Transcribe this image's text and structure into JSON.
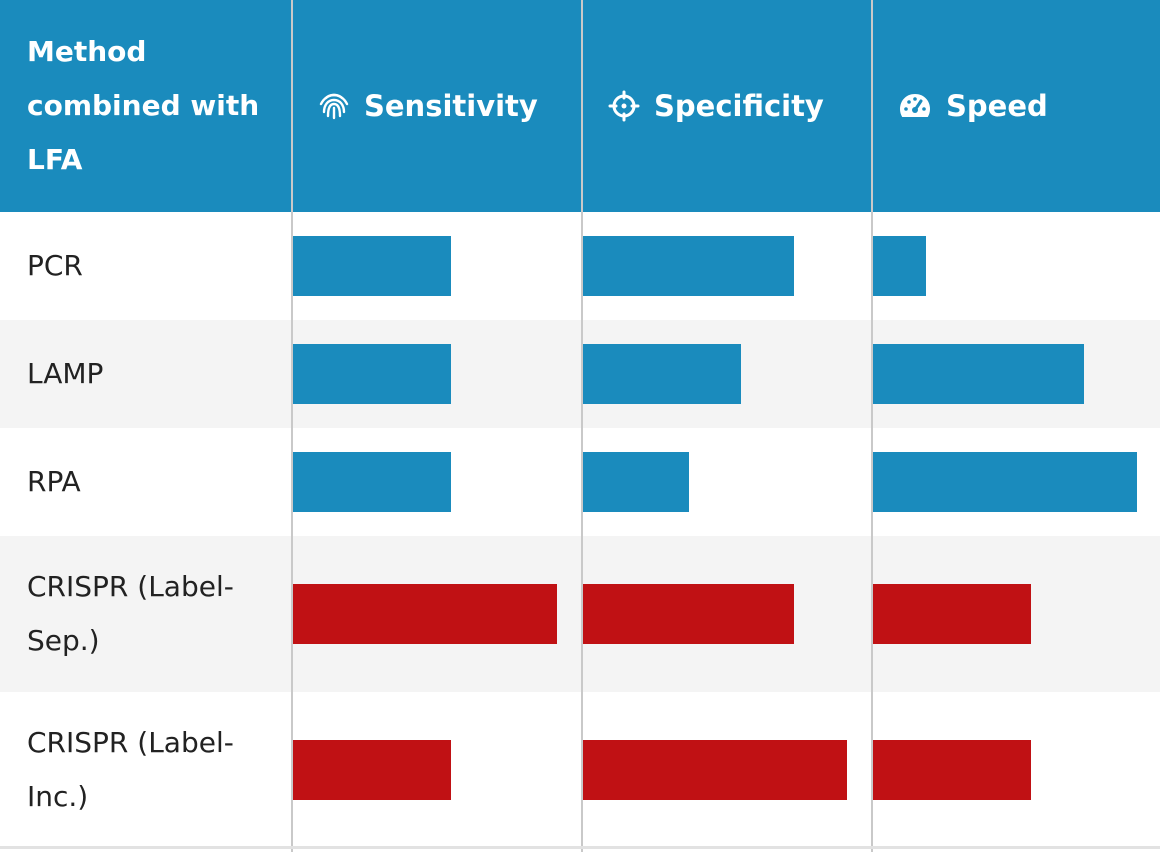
{
  "header": {
    "method_title": [
      "Method",
      "combined with",
      "LFA"
    ]
  },
  "colors": {
    "lfa_conventional": "#1a8bbd",
    "crispr": "#c01114"
  },
  "chart_data": {
    "type": "bar",
    "columns": [
      {
        "key": "sensitivity",
        "label": "Sensitivity",
        "icon": "fingerprint-icon"
      },
      {
        "key": "specificity",
        "label": "Specificity",
        "icon": "crosshair-icon"
      },
      {
        "key": "speed",
        "label": "Speed",
        "icon": "speedometer-icon"
      }
    ],
    "max_value": 5,
    "rows": [
      {
        "label": [
          "PCR"
        ],
        "group": "lfa_conventional",
        "values": [
          3,
          4,
          1
        ]
      },
      {
        "label": [
          "LAMP"
        ],
        "group": "lfa_conventional",
        "values": [
          3,
          3,
          4
        ]
      },
      {
        "label": [
          "RPA"
        ],
        "group": "lfa_conventional",
        "values": [
          3,
          2,
          5
        ]
      },
      {
        "label": [
          "CRISPR (Label-",
          "Sep.)"
        ],
        "group": "crispr",
        "values": [
          5,
          4,
          3
        ]
      },
      {
        "label": [
          "CRISPR (Label-",
          "Inc.)"
        ],
        "group": "crispr",
        "values": [
          3,
          5,
          3
        ]
      }
    ]
  }
}
